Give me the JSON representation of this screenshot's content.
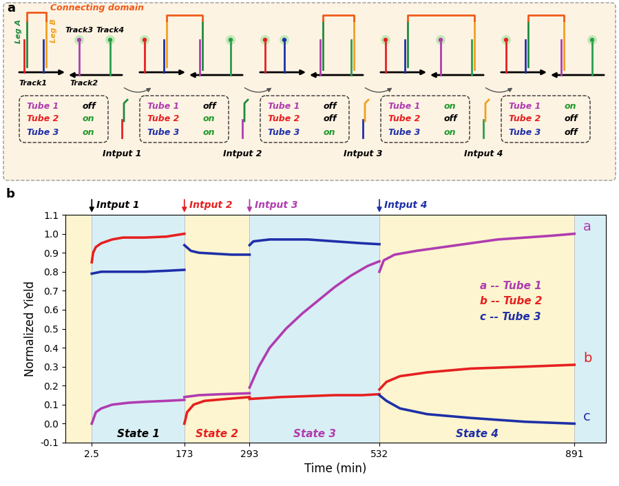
{
  "diagram": {
    "label": "a",
    "connecting_domain": "Connecting domain",
    "legs": [
      "Leg A",
      "Leg B"
    ],
    "tracks": [
      "Track1",
      "Track2",
      "Track3",
      "Track4"
    ],
    "tubes": [
      {
        "name": "Tube 1",
        "color": "#b03cb0"
      },
      {
        "name": "Tube 2",
        "color": "#e62020"
      },
      {
        "name": "Tube 3",
        "color": "#1f2fa8"
      }
    ],
    "stages": [
      [
        "off",
        "on",
        "on"
      ],
      [
        "off",
        "on",
        "on"
      ],
      [
        "off",
        "off",
        "on"
      ],
      [
        "on",
        "off",
        "on"
      ],
      [
        "on",
        "off",
        "off"
      ]
    ],
    "inputs": [
      "Intput 1",
      "Intput 2",
      "Intput 3",
      "Intput 4"
    ]
  },
  "chart_data": {
    "type": "line",
    "panel_label": "b",
    "x_label": "Time (min)",
    "y_label": "Normalized Yield",
    "xlim": [
      -46,
      949
    ],
    "ylim": [
      -0.1,
      1.1
    ],
    "xticks": [
      2.5,
      173,
      293,
      532,
      891
    ],
    "yticks": [
      -0.1,
      {
        "value": 0,
        "label": "0.0"
      },
      0.1,
      0.2,
      0.3,
      0.4,
      0.5,
      0.6,
      0.7,
      0.8,
      0.9,
      {
        "value": 1,
        "label": "1.0"
      },
      1.1
    ],
    "legend": "center right",
    "annotations": [
      {
        "text": "Intput 1",
        "x": 2.5,
        "color": "#000000"
      },
      {
        "text": "Intput 2",
        "x": 173,
        "color": "#e62020"
      },
      {
        "text": "Intput 3",
        "x": 293,
        "color": "#b03cb0"
      },
      {
        "text": "Intput 4",
        "x": 532,
        "color": "#1f2fa8"
      }
    ],
    "states": [
      {
        "label": "State 1",
        "start": 2.5,
        "end": 173,
        "color": "#000000"
      },
      {
        "label": "State 2",
        "start": 173,
        "end": 293,
        "color": "#e62020"
      },
      {
        "label": "State 3",
        "start": 293,
        "end": 532,
        "color": "#b03cb0"
      },
      {
        "label": "State 4",
        "start": 532,
        "end": 891,
        "color": "#1f2fa8"
      }
    ],
    "series": [
      {
        "name": "a -- Tube 1",
        "end_label": "a",
        "color": "#b03cb0",
        "x": [
          2.5,
          10,
          20,
          40,
          70,
          100,
          140,
          173,
          173,
          173,
          200,
          240,
          293,
          293,
          293,
          310,
          330,
          360,
          390,
          420,
          450,
          480,
          510,
          532,
          532,
          532,
          540,
          560,
          600,
          650,
          700,
          750,
          800,
          850,
          891
        ],
        "values": [
          0.0,
          0.06,
          0.08,
          0.1,
          0.11,
          0.115,
          0.12,
          0.125,
          null,
          0.14,
          0.15,
          0.155,
          0.16,
          null,
          0.19,
          0.3,
          0.4,
          0.5,
          0.58,
          0.65,
          0.72,
          0.78,
          0.83,
          0.855,
          null,
          0.8,
          0.86,
          0.89,
          0.91,
          0.93,
          0.95,
          0.97,
          0.98,
          0.99,
          1.0
        ]
      },
      {
        "name": "b -- Tube 2",
        "end_label": "b",
        "color": "#e62020",
        "x": [
          2.5,
          5,
          10,
          20,
          40,
          60,
          100,
          140,
          173,
          173,
          173,
          178,
          190,
          210,
          250,
          293,
          293,
          293,
          350,
          400,
          450,
          500,
          532,
          532,
          532,
          545,
          570,
          620,
          700,
          800,
          891
        ],
        "values": [
          0.85,
          0.9,
          0.93,
          0.95,
          0.97,
          0.98,
          0.98,
          0.985,
          1.0,
          null,
          0.0,
          0.06,
          0.1,
          0.12,
          0.13,
          0.14,
          null,
          0.13,
          0.14,
          0.145,
          0.15,
          0.15,
          0.155,
          null,
          0.18,
          0.22,
          0.25,
          0.27,
          0.29,
          0.3,
          0.31
        ]
      },
      {
        "name": "c -- Tube 3",
        "end_label": "c",
        "color": "#1f2fa8",
        "x": [
          2.5,
          20,
          60,
          100,
          140,
          173,
          173,
          173,
          185,
          200,
          230,
          260,
          293,
          293,
          293,
          300,
          330,
          400,
          450,
          500,
          532,
          532,
          532,
          545,
          570,
          620,
          700,
          800,
          891
        ],
        "values": [
          0.79,
          0.8,
          0.8,
          0.8,
          0.805,
          0.81,
          null,
          0.94,
          0.91,
          0.9,
          0.895,
          0.89,
          0.89,
          null,
          0.94,
          0.96,
          0.97,
          0.97,
          0.96,
          0.95,
          0.945,
          null,
          0.15,
          0.12,
          0.08,
          0.05,
          0.03,
          0.01,
          0.0
        ]
      }
    ]
  }
}
